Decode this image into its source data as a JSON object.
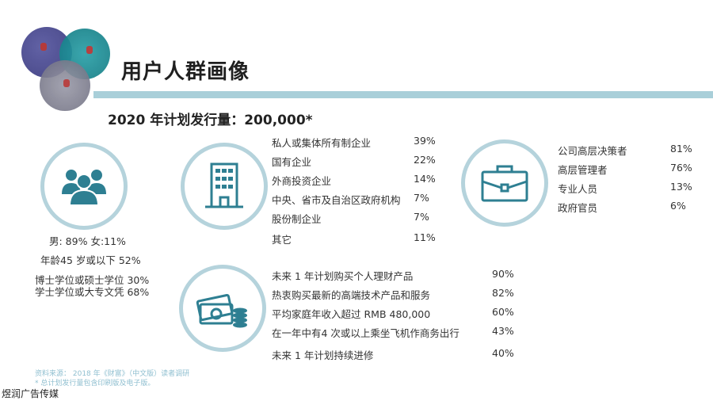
{
  "title": "用户人群画像",
  "subtitle": "2020 年计划发行量：200,000*",
  "people": {
    "icon": "people-icon",
    "lines": [
      "男: 89% 女:11%",
      "年龄45 岁或以下 52%",
      "博士学位或硕士学位 30%",
      "学士学位或大专文凭 68%"
    ]
  },
  "ownership": {
    "icon": "building-icon",
    "rows": [
      {
        "label": "私人或集体所有制企业",
        "value": "39%"
      },
      {
        "label": "国有企业",
        "value": "22%"
      },
      {
        "label": "外商投资企业",
        "value": "14%"
      },
      {
        "label": "中央、省市及自治区政府机构",
        "value": "7%"
      },
      {
        "label": "股份制企业",
        "value": "7%"
      },
      {
        "label": "其它",
        "value": "11%"
      }
    ]
  },
  "positions": {
    "icon": "briefcase-icon",
    "rows": [
      {
        "label": "公司高层决策者",
        "value": "81%"
      },
      {
        "label": "高层管理者",
        "value": "76%"
      },
      {
        "label": "专业人员",
        "value": "13%"
      },
      {
        "label": "政府官员",
        "value": "6%"
      }
    ]
  },
  "finance": {
    "icon": "money-icon",
    "rows": [
      {
        "label": "未来 1 年计划购买个人理财产品",
        "value": "90%"
      },
      {
        "label": "热衷购买最新的高端技术产品和服务",
        "value": "82%"
      },
      {
        "label": "平均家庭年收入超过 RMB 480,000",
        "value": "60%"
      },
      {
        "label": "在一年中有4 次或以上乘坐飞机作商务出行",
        "value": "43%"
      },
      {
        "label": "未来 1 年计划持续进修",
        "value": "40%"
      }
    ]
  },
  "source": {
    "line1": "资料来源： 2018 年《财富》（中文版）读者调研",
    "line2": "* 总计划发行量包含印刷版及电子版。"
  },
  "watermark": "煜润广告传媒",
  "colors": {
    "accent": "#a9cfd9",
    "icon": "#2e7f92",
    "ring": "#b5d3dc",
    "source": "#8fbfd0"
  }
}
